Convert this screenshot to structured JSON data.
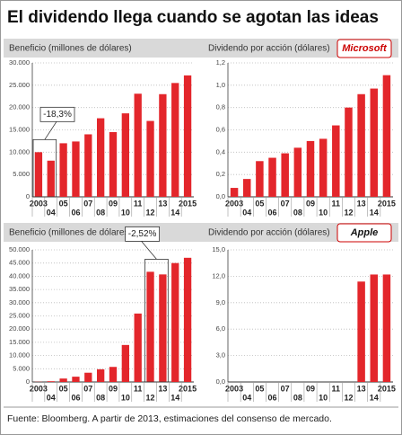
{
  "title": "El dividendo llega cuando se agotan las ideas",
  "source": "Fuente: Bloomberg. A partir de 2013, estimaciones del consenso de mercado.",
  "chart_data": [
    {
      "type": "bar",
      "title": "Beneficio (millones de dólares)",
      "color": "#e3262b",
      "grid": true,
      "categories": [
        "2003",
        "04",
        "05",
        "06",
        "07",
        "08",
        "09",
        "10",
        "11",
        "12",
        "13",
        "14",
        "2015"
      ],
      "values": [
        10000,
        8100,
        12000,
        12400,
        14000,
        17600,
        14500,
        18700,
        23100,
        17000,
        23000,
        25500,
        27200
      ],
      "ylim": [
        0,
        30000
      ],
      "yticks": [
        {
          "value": 0,
          "label": "0"
        },
        {
          "value": 5000,
          "label": "5.000"
        },
        {
          "value": 10000,
          "label": "10.000"
        },
        {
          "value": 15000,
          "label": "15.000"
        },
        {
          "value": 20000,
          "label": "20.000"
        },
        {
          "value": 25000,
          "label": "25.000"
        },
        {
          "value": 30000,
          "label": "30.000"
        }
      ],
      "annotation": "-18,3%"
    },
    {
      "type": "bar",
      "title": "Dividendo por acción (dólares)",
      "logo": "Microsoft",
      "color": "#e3262b",
      "grid": true,
      "categories": [
        "2003",
        "04",
        "05",
        "06",
        "07",
        "08",
        "09",
        "10",
        "11",
        "12",
        "13",
        "14",
        "2015"
      ],
      "values": [
        0.08,
        0.16,
        0.32,
        0.35,
        0.39,
        0.44,
        0.5,
        0.52,
        0.64,
        0.8,
        0.92,
        0.97,
        1.09
      ],
      "ylim": [
        0,
        1.2
      ],
      "yticks": [
        {
          "value": 0,
          "label": "0,0"
        },
        {
          "value": 0.2,
          "label": "0,2"
        },
        {
          "value": 0.4,
          "label": "0,4"
        },
        {
          "value": 0.6,
          "label": "0,6"
        },
        {
          "value": 0.8,
          "label": "0,8"
        },
        {
          "value": 1.0,
          "label": "1,0"
        },
        {
          "value": 1.2,
          "label": "1,2"
        }
      ]
    },
    {
      "type": "bar",
      "title": "Beneficio (millones de dólares)",
      "color": "#e3262b",
      "grid": true,
      "categories": [
        "2003",
        "04",
        "05",
        "06",
        "07",
        "08",
        "09",
        "10",
        "11",
        "12",
        "13",
        "14",
        "2015"
      ],
      "values": [
        70,
        280,
        1300,
        2000,
        3500,
        4800,
        5700,
        14000,
        25900,
        41700,
        40700,
        45000,
        47000
      ],
      "ylim": [
        0,
        50000
      ],
      "yticks": [
        {
          "value": 0,
          "label": "0"
        },
        {
          "value": 5000,
          "label": "5.000"
        },
        {
          "value": 10000,
          "label": "10.000"
        },
        {
          "value": 15000,
          "label": "15.000"
        },
        {
          "value": 20000,
          "label": "20.000"
        },
        {
          "value": 25000,
          "label": "25.000"
        },
        {
          "value": 30000,
          "label": "30.000"
        },
        {
          "value": 35000,
          "label": "35.000"
        },
        {
          "value": 40000,
          "label": "40.000"
        },
        {
          "value": 45000,
          "label": "45.000"
        },
        {
          "value": 50000,
          "label": "50.000"
        }
      ],
      "annotation": "-2,52%"
    },
    {
      "type": "bar",
      "title": "Dividendo por acción (dólares)",
      "logo": "Apple",
      "color": "#e3262b",
      "grid": true,
      "categories": [
        "2003",
        "04",
        "05",
        "06",
        "07",
        "08",
        "09",
        "10",
        "11",
        "12",
        "13",
        "14",
        "2015"
      ],
      "values": [
        0,
        0,
        0,
        0,
        0,
        0,
        0,
        0,
        0,
        0,
        11.4,
        12.2,
        12.2
      ],
      "ylim": [
        0,
        15
      ],
      "yticks": [
        {
          "value": 0,
          "label": "0,0"
        },
        {
          "value": 3,
          "label": "3,0"
        },
        {
          "value": 6,
          "label": "6,0"
        },
        {
          "value": 9,
          "label": "9,0"
        },
        {
          "value": 12,
          "label": "12,0"
        },
        {
          "value": 15,
          "label": "15,0"
        }
      ]
    }
  ]
}
